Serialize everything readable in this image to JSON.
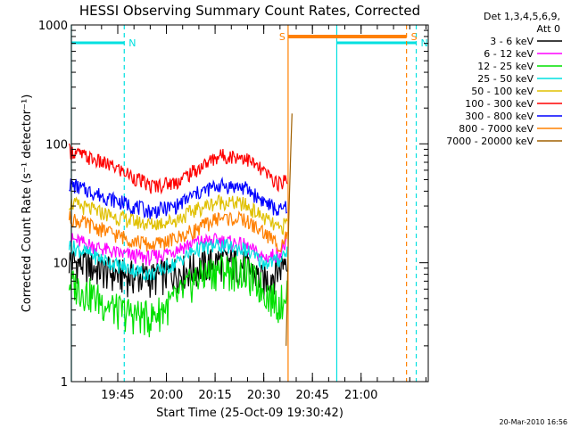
{
  "chart_data": {
    "type": "line",
    "title": "HESSI Observing Summary Count Rates, Corrected",
    "xlabel": "Start Time (25-Oct-09 19:30:42)",
    "ylabel": "Corrected Count Rate (s⁻¹ detector⁻¹)",
    "y_scale": "log",
    "ylim": [
      1,
      1000
    ],
    "xlim": [
      "19:30:42",
      "21:20:42"
    ],
    "x_ticks": [
      "19:45",
      "20:00",
      "20:15",
      "20:30",
      "20:45",
      "21:00"
    ],
    "y_ticks": [
      "1",
      "10",
      "100",
      "1000"
    ],
    "legend_title": [
      "Det 1,3,4,5,6,9,",
      "Att 0"
    ],
    "legend_position": "right",
    "footer": "20-Mar-2010 16:56",
    "markers": [
      {
        "label": "N",
        "type": "night",
        "color": "#00e0e0",
        "from": "19:30:42",
        "to": "19:47:00",
        "start_line": "19:30:42",
        "end_line": "19:47:00"
      },
      {
        "label": "N",
        "type": "night",
        "color": "#00e0e0",
        "from": "20:52:30",
        "to": "21:17:00",
        "start_line": "20:52:30",
        "end_line": "21:17:00"
      },
      {
        "label": "S",
        "type": "saa",
        "color": "#ff8000",
        "from": "20:37:30",
        "to": "21:14:00",
        "start_line": "20:37:30",
        "end_line": "21:14:00"
      }
    ],
    "series": [
      {
        "name": "3 - 6 keV",
        "color": "#000000",
        "values": [
          [
            19.5,
            10.5
          ],
          [
            19.75,
            8
          ],
          [
            19.92,
            7.5
          ],
          [
            20.05,
            8.5
          ],
          [
            20.15,
            9
          ],
          [
            20.27,
            10.5
          ],
          [
            20.4,
            9.5
          ],
          [
            20.5,
            7
          ],
          [
            20.58,
            9
          ],
          [
            20.62,
            12
          ]
        ]
      },
      {
        "name": "6 - 12 keV",
        "color": "#ff00ff",
        "values": [
          [
            19.5,
            16
          ],
          [
            19.75,
            12
          ],
          [
            19.92,
            11
          ],
          [
            20.05,
            13
          ],
          [
            20.15,
            15
          ],
          [
            20.27,
            15.5
          ],
          [
            20.4,
            14
          ],
          [
            20.5,
            11
          ],
          [
            20.58,
            12
          ],
          [
            20.62,
            15
          ]
        ]
      },
      {
        "name": "12 - 25 keV",
        "color": "#00e000",
        "values": [
          [
            19.5,
            7
          ],
          [
            19.75,
            4
          ],
          [
            19.92,
            3.5
          ],
          [
            20.05,
            5
          ],
          [
            20.15,
            7.5
          ],
          [
            20.27,
            9
          ],
          [
            20.4,
            8.5
          ],
          [
            20.5,
            6
          ],
          [
            20.58,
            4.5
          ],
          [
            20.62,
            6
          ]
        ]
      },
      {
        "name": "25 - 50 keV",
        "color": "#00e0e0",
        "values": [
          [
            19.5,
            14
          ],
          [
            19.75,
            9.5
          ],
          [
            19.92,
            8
          ],
          [
            20.05,
            10
          ],
          [
            20.15,
            13
          ],
          [
            20.27,
            14
          ],
          [
            20.4,
            13
          ],
          [
            20.5,
            10
          ],
          [
            20.58,
            10.5
          ],
          [
            20.62,
            13
          ]
        ]
      },
      {
        "name": "50 - 100 keV",
        "color": "#e0c000",
        "values": [
          [
            19.5,
            32
          ],
          [
            19.75,
            24
          ],
          [
            19.92,
            21
          ],
          [
            20.05,
            23
          ],
          [
            20.15,
            28
          ],
          [
            20.27,
            33
          ],
          [
            20.4,
            31
          ],
          [
            20.5,
            24
          ],
          [
            20.58,
            19
          ],
          [
            20.62,
            22
          ]
        ]
      },
      {
        "name": "100 - 300 keV",
        "color": "#ff0000",
        "values": [
          [
            19.5,
            88
          ],
          [
            19.75,
            62
          ],
          [
            19.92,
            44
          ],
          [
            20.05,
            48
          ],
          [
            20.15,
            60
          ],
          [
            20.27,
            80
          ],
          [
            20.4,
            78
          ],
          [
            20.5,
            58
          ],
          [
            20.58,
            46
          ],
          [
            20.62,
            52
          ]
        ]
      },
      {
        "name": "300 - 800 keV",
        "color": "#0000ff",
        "values": [
          [
            19.5,
            46
          ],
          [
            19.75,
            33
          ],
          [
            19.92,
            27
          ],
          [
            20.05,
            30
          ],
          [
            20.15,
            38
          ],
          [
            20.27,
            45
          ],
          [
            20.4,
            43
          ],
          [
            20.5,
            33
          ],
          [
            20.58,
            27
          ],
          [
            20.62,
            30
          ]
        ]
      },
      {
        "name": "800 - 7000 keV",
        "color": "#ff8000",
        "values": [
          [
            19.5,
            24
          ],
          [
            19.75,
            17
          ],
          [
            19.92,
            14
          ],
          [
            20.05,
            16
          ],
          [
            20.15,
            19
          ],
          [
            20.27,
            24
          ],
          [
            20.4,
            23
          ],
          [
            20.5,
            18
          ],
          [
            20.58,
            14
          ],
          [
            20.62,
            17
          ]
        ]
      },
      {
        "name": "7000 - 20000 keV",
        "color": "#a06000",
        "values": [
          [
            20.615,
            2
          ],
          [
            20.63,
            30
          ],
          [
            20.645,
            180
          ]
        ]
      }
    ]
  }
}
